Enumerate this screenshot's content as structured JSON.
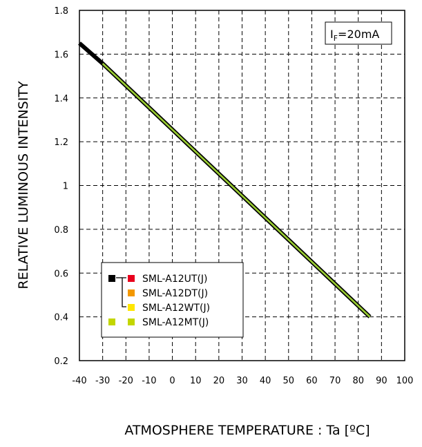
{
  "chart_data": {
    "type": "line",
    "title": "",
    "xlabel": "ATMOSPHERE TEMPERATURE : Ta [ºC]",
    "ylabel": "RELATIVE LUMINOUS INTENSITY",
    "xlim": [
      -40,
      100
    ],
    "ylim": [
      0.2,
      1.8
    ],
    "x_ticks": [
      "-40",
      "-30",
      "-20",
      "-10",
      "0",
      "10",
      "20",
      "30",
      "40",
      "50",
      "60",
      "70",
      "80",
      "90",
      "100"
    ],
    "y_ticks": [
      "0.2",
      "0.4",
      "0.6",
      "0.8",
      "1",
      "1.2",
      "1.4",
      "1.6",
      "1.8"
    ],
    "grid": true,
    "annotation": {
      "symbol": "I",
      "subscript": "F",
      "value": "=20mA"
    },
    "legend_position": "bottom-left",
    "series": [
      {
        "name": "SML-A12UT(J)",
        "color": "#000000",
        "x": [
          -40,
          -30,
          85
        ],
        "y": [
          1.65,
          1.557,
          0.4
        ]
      },
      {
        "name": "SML-A12DT(J)",
        "color": "#000000",
        "x": [
          -40,
          -30,
          85
        ],
        "y": [
          1.65,
          1.557,
          0.4
        ]
      },
      {
        "name": "SML-A12WT(J)",
        "color": "#000000",
        "x": [
          -40,
          -30,
          85
        ],
        "y": [
          1.65,
          1.557,
          0.4
        ]
      },
      {
        "name": "SML-A12MT(J)",
        "color": "#9acd32",
        "x": [
          -30,
          85
        ],
        "y": [
          1.557,
          0.4
        ]
      }
    ],
    "legend": [
      {
        "label": "SML-A12UT(J)",
        "swatch": "#e8001c",
        "group_swatch": "#000000"
      },
      {
        "label": "SML-A12DT(J)",
        "swatch": "#f39800",
        "group_swatch": "#000000"
      },
      {
        "label": "SML-A12WT(J)",
        "swatch": "#ffe600",
        "group_swatch": "#000000"
      },
      {
        "label": "SML-A12MT(J)",
        "swatch": "#c3d600",
        "group_swatch": "#c3d600"
      }
    ]
  }
}
